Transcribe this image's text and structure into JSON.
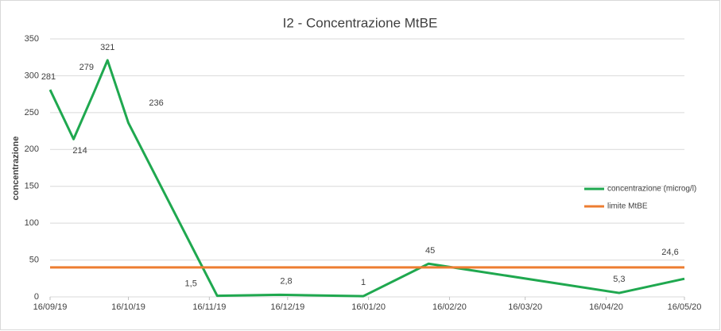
{
  "chart_data": {
    "type": "line",
    "title": "I2 - Concentrazione MtBE",
    "y_label": "concentrazione",
    "x": [
      "16/09/19",
      "25/09/19",
      "03/10/19",
      "08/10/19",
      "16/10/19",
      "19/11/19",
      "13/12/19",
      "14/01/20",
      "08/02/20",
      "21/04/20",
      "16/05/20"
    ],
    "series": [
      {
        "name": "concentrazione (microg/l)",
        "color": "#1fa84f",
        "values": [
          281,
          214,
          279,
          321,
          236,
          1.5,
          2.8,
          1,
          45,
          5.3,
          24.6
        ],
        "value_labels": [
          "281",
          "214",
          "279",
          "321",
          "236",
          "1,5",
          "2,8",
          "1",
          "45",
          "5,3",
          "24,6"
        ]
      },
      {
        "name": "limite MtBE",
        "color": "#ed7d31",
        "x": [
          "16/09/19",
          "16/05/20"
        ],
        "values": [
          40,
          40
        ]
      }
    ],
    "xlim": [
      "16/09/19",
      "16/05/20"
    ],
    "xticks": [
      "16/09/19",
      "16/10/19",
      "16/11/19",
      "16/12/19",
      "16/01/20",
      "16/02/20",
      "16/03/20",
      "16/04/20",
      "16/05/20"
    ],
    "ylim": [
      0,
      350
    ],
    "yticks": [
      0,
      50,
      100,
      150,
      200,
      250,
      300,
      350
    ],
    "grid": true,
    "legend": "right"
  }
}
